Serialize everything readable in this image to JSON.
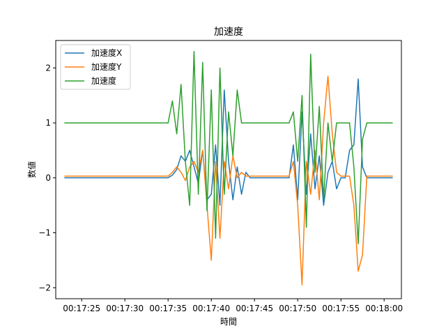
{
  "chart_data": {
    "type": "line",
    "title": "加速度",
    "xlabel": "時間",
    "ylabel": "数値",
    "xlim": [
      "00:17:22",
      "00:18:02"
    ],
    "ylim": [
      -2.2,
      2.5
    ],
    "x_ticks": [
      "00:17:25",
      "00:17:30",
      "00:17:35",
      "00:17:40",
      "00:17:45",
      "00:17:50",
      "00:17:55",
      "00:18:00"
    ],
    "y_ticks": [
      -2,
      -1,
      0,
      1,
      2
    ],
    "legend_position": "top-left",
    "grid": false,
    "series": [
      {
        "name": "加速度X",
        "color": "#1f77b4",
        "points": [
          [
            "00:17:23",
            0.0
          ],
          [
            "00:17:35",
            0.0
          ],
          [
            "00:17:35.5",
            0.05
          ],
          [
            "00:17:36",
            0.15
          ],
          [
            "00:17:36.5",
            0.4
          ],
          [
            "00:17:37",
            0.3
          ],
          [
            "00:17:37.5",
            0.5
          ],
          [
            "00:17:38",
            0.2
          ],
          [
            "00:17:38.5",
            -0.1
          ],
          [
            "00:17:39",
            0.5
          ],
          [
            "00:17:39.5",
            -0.4
          ],
          [
            "00:17:40",
            -0.3
          ],
          [
            "00:17:40.5",
            0.6
          ],
          [
            "00:17:41",
            -0.5
          ],
          [
            "00:17:41.5",
            1.6
          ],
          [
            "00:17:42",
            0.3
          ],
          [
            "00:17:42.5",
            -0.4
          ],
          [
            "00:17:43",
            0.2
          ],
          [
            "00:17:43.5",
            -0.3
          ],
          [
            "00:17:44",
            0.1
          ],
          [
            "00:17:44.5",
            0.0
          ],
          [
            "00:17:49",
            0.0
          ],
          [
            "00:17:49.5",
            0.6
          ],
          [
            "00:17:50",
            -0.4
          ],
          [
            "00:17:50.5",
            1.2
          ],
          [
            "00:17:51",
            -0.3
          ],
          [
            "00:17:51.5",
            0.8
          ],
          [
            "00:17:52",
            -0.2
          ],
          [
            "00:17:52.5",
            0.4
          ],
          [
            "00:17:53",
            -0.5
          ],
          [
            "00:17:53.5",
            0.1
          ],
          [
            "00:17:54",
            0.3
          ],
          [
            "00:17:54.5",
            -0.2
          ],
          [
            "00:17:55",
            0.0
          ],
          [
            "00:17:55.5",
            0.0
          ],
          [
            "00:17:56",
            0.5
          ],
          [
            "00:17:56.5",
            0.6
          ],
          [
            "00:17:57",
            1.8
          ],
          [
            "00:17:57.5",
            0.2
          ],
          [
            "00:17:58",
            0.0
          ],
          [
            "00:18:01",
            0.0
          ]
        ]
      },
      {
        "name": "加速度Y",
        "color": "#ff7f0e",
        "points": [
          [
            "00:17:23",
            0.03
          ],
          [
            "00:17:35",
            0.03
          ],
          [
            "00:17:35.5",
            0.1
          ],
          [
            "00:17:36",
            0.2
          ],
          [
            "00:17:36.5",
            0.1
          ],
          [
            "00:17:37",
            -0.05
          ],
          [
            "00:17:37.5",
            0.2
          ],
          [
            "00:17:38",
            0.3
          ],
          [
            "00:17:38.5",
            0.1
          ],
          [
            "00:17:39",
            0.5
          ],
          [
            "00:17:39.5",
            -0.5
          ],
          [
            "00:17:40",
            -1.5
          ],
          [
            "00:17:40.5",
            0.3
          ],
          [
            "00:17:41",
            -1.1
          ],
          [
            "00:17:41.5",
            0.3
          ],
          [
            "00:17:42",
            -0.2
          ],
          [
            "00:17:42.5",
            0.4
          ],
          [
            "00:17:43",
            0.0
          ],
          [
            "00:17:43.5",
            0.1
          ],
          [
            "00:17:44",
            0.03
          ],
          [
            "00:17:49",
            0.03
          ],
          [
            "00:17:49.5",
            0.3
          ],
          [
            "00:17:50",
            -0.5
          ],
          [
            "00:17:50.5",
            -1.95
          ],
          [
            "00:17:51",
            0.3
          ],
          [
            "00:17:51.5",
            -0.3
          ],
          [
            "00:17:52",
            0.5
          ],
          [
            "00:17:52.5",
            -0.4
          ],
          [
            "00:17:53",
            1.0
          ],
          [
            "00:17:53.5",
            1.85
          ],
          [
            "00:17:54",
            0.8
          ],
          [
            "00:17:54.5",
            0.1
          ],
          [
            "00:17:55",
            0.03
          ],
          [
            "00:17:56",
            0.03
          ],
          [
            "00:17:56.5",
            -0.5
          ],
          [
            "00:17:57",
            -1.7
          ],
          [
            "00:17:57.5",
            -1.4
          ],
          [
            "00:17:58",
            0.03
          ],
          [
            "00:18:01",
            0.03
          ]
        ]
      },
      {
        "name": "加速度",
        "color": "#2ca02c",
        "points": [
          [
            "00:17:23",
            1.0
          ],
          [
            "00:17:35",
            1.0
          ],
          [
            "00:17:35.5",
            1.4
          ],
          [
            "00:17:36",
            0.8
          ],
          [
            "00:17:36.5",
            1.7
          ],
          [
            "00:17:37",
            0.3
          ],
          [
            "00:17:37.5",
            -0.5
          ],
          [
            "00:17:38",
            2.3
          ],
          [
            "00:17:38.5",
            -0.3
          ],
          [
            "00:17:39",
            2.1
          ],
          [
            "00:17:39.5",
            -0.6
          ],
          [
            "00:17:40",
            1.6
          ],
          [
            "00:17:40.5",
            -1.1
          ],
          [
            "00:17:41",
            2.0
          ],
          [
            "00:17:41.5",
            -0.3
          ],
          [
            "00:17:42",
            1.2
          ],
          [
            "00:17:42.5",
            0.4
          ],
          [
            "00:17:43",
            1.6
          ],
          [
            "00:17:43.5",
            1.0
          ],
          [
            "00:17:49",
            1.0
          ],
          [
            "00:17:49.5",
            1.2
          ],
          [
            "00:17:50",
            0.3
          ],
          [
            "00:17:50.5",
            1.5
          ],
          [
            "00:17:51",
            -0.9
          ],
          [
            "00:17:51.5",
            2.25
          ],
          [
            "00:17:52",
            0.1
          ],
          [
            "00:17:52.5",
            1.3
          ],
          [
            "00:17:53",
            -0.4
          ],
          [
            "00:17:53.5",
            1.0
          ],
          [
            "00:17:54",
            0.3
          ],
          [
            "00:17:54.5",
            1.0
          ],
          [
            "00:17:56",
            1.0
          ],
          [
            "00:17:56.5",
            0.2
          ],
          [
            "00:17:57",
            -1.2
          ],
          [
            "00:17:57.5",
            0.7
          ],
          [
            "00:17:58",
            1.0
          ],
          [
            "00:18:01",
            1.0
          ]
        ]
      }
    ]
  }
}
